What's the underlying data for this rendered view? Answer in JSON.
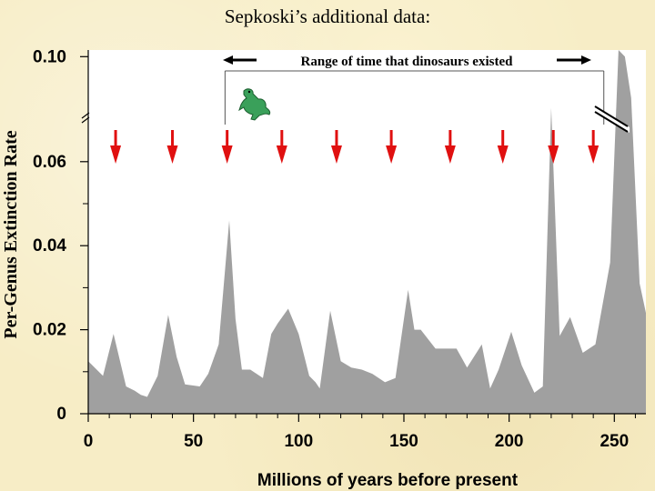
{
  "slide_title": "Sepkoski’s additional data:",
  "colors": {
    "background": "#f7edc6",
    "plot_bg": "#ffffff",
    "area_fill": "#a0a0a0",
    "arrow": "#e01010",
    "text": "#000000"
  },
  "icons": {
    "dinosaur": "dinosaur-icon"
  },
  "chart_data": {
    "type": "area",
    "title": "",
    "xlabel": "Millions of years before present",
    "ylabel": "Per-Genus Extinction Rate",
    "xlim": [
      0,
      265
    ],
    "x_ticks": [
      0,
      50,
      100,
      150,
      200,
      250
    ],
    "x_tick_labels": [
      "0",
      "50",
      "100",
      "150",
      "200",
      "250"
    ],
    "y_ticks": [
      0,
      0.02,
      0.04,
      0.06,
      0.1
    ],
    "y_tick_labels": [
      "0",
      "0.02",
      "0.04",
      "0.06",
      "0.10"
    ],
    "y_axis_break": true,
    "grid": false,
    "series": [
      {
        "x": [
          0,
          4,
          7,
          12,
          18,
          22,
          25,
          28,
          33,
          38,
          42,
          46,
          53,
          57,
          62,
          67,
          70,
          73,
          77,
          83,
          87,
          90,
          95,
          100,
          105,
          108,
          110,
          115,
          120,
          125,
          130,
          135,
          141,
          146,
          152,
          155,
          158,
          165,
          170,
          175,
          180,
          187,
          191,
          195,
          201,
          206,
          212,
          216,
          220,
          224,
          229,
          235,
          241,
          248,
          252,
          255,
          258,
          262,
          265
        ],
        "y": [
          0.0125,
          0.0105,
          0.009,
          0.019,
          0.0065,
          0.0055,
          0.0045,
          0.004,
          0.009,
          0.0235,
          0.0135,
          0.007,
          0.0065,
          0.0095,
          0.0165,
          0.046,
          0.0225,
          0.0105,
          0.0105,
          0.0085,
          0.019,
          0.0215,
          0.025,
          0.019,
          0.009,
          0.0075,
          0.006,
          0.0245,
          0.0125,
          0.011,
          0.0105,
          0.0095,
          0.0075,
          0.0085,
          0.0295,
          0.02,
          0.02,
          0.0155,
          0.0155,
          0.0155,
          0.011,
          0.0165,
          0.006,
          0.0105,
          0.0195,
          0.0115,
          0.005,
          0.0065,
          0.0795,
          0.0185,
          0.023,
          0.0145,
          0.0165,
          0.036,
          0.11,
          0.1,
          0.0835,
          0.031,
          0.024
        ]
      }
    ],
    "break_mapping": {
      "note": "values above break compressed",
      "lower_end": 0.063,
      "upper_start": 0.1,
      "upper_start_display": 0.085
    },
    "annotations": {
      "range_label": "Range of time that dinosaurs existed",
      "dinosaur_range": [
        65,
        245
      ],
      "extinction_markers": [
        13,
        40,
        66,
        92,
        118,
        144,
        172,
        197,
        221,
        240
      ]
    }
  }
}
